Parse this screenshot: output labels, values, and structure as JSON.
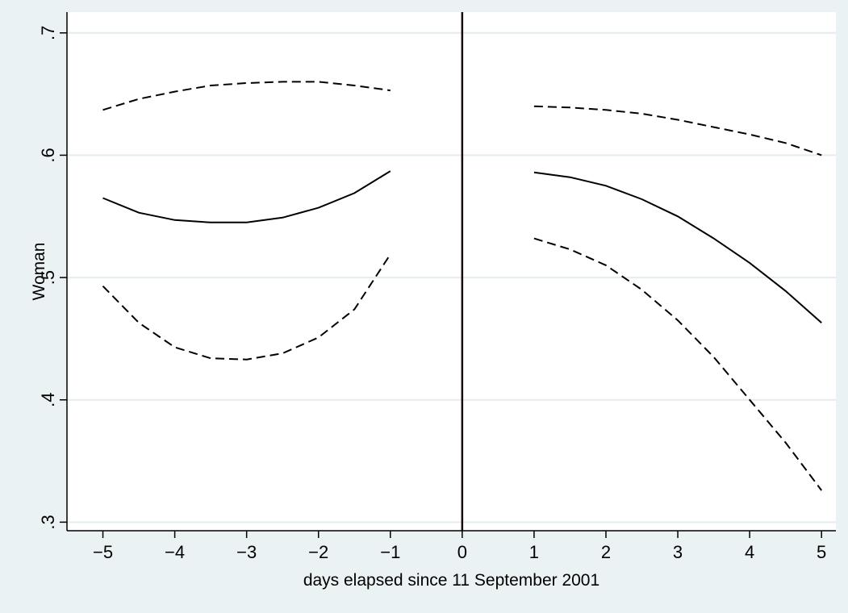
{
  "chart_data": {
    "type": "line",
    "title": "",
    "xlabel": "days elapsed since 11 September 2001",
    "ylabel": "Woman",
    "xlim": [
      -5.5,
      5.2
    ],
    "ylim": [
      0.293,
      0.717
    ],
    "xticks": [
      -5,
      -4,
      -3,
      -2,
      -1,
      0,
      1,
      2,
      3,
      4,
      5
    ],
    "xtick_labels": [
      "−5",
      "−4",
      "−3",
      "−2",
      "−1",
      "0",
      "1",
      "2",
      "3",
      "4",
      "5"
    ],
    "yticks": [
      0.3,
      0.4,
      0.5,
      0.6,
      0.7
    ],
    "ytick_labels": [
      ".3",
      ".4",
      ".5",
      ".6",
      ".7"
    ],
    "grid": true,
    "vertical_line_x": 0,
    "colors": {
      "background": "#eaf2f3",
      "plot_area": "#ffffff",
      "grid": "#e3ecee",
      "line": "#000000",
      "vline": "#1a0a0a"
    },
    "series": [
      {
        "style": "solid",
        "segment": "pre",
        "x": [
          -5,
          -4.5,
          -4,
          -3.5,
          -3,
          -2.5,
          -2,
          -1.5,
          -1
        ],
        "y": [
          0.565,
          0.553,
          0.547,
          0.545,
          0.545,
          0.549,
          0.557,
          0.569,
          0.587
        ]
      },
      {
        "style": "dashed",
        "segment": "pre",
        "x": [
          -5,
          -4.5,
          -4,
          -3.5,
          -3,
          -2.5,
          -2,
          -1.5,
          -1
        ],
        "y": [
          0.637,
          0.646,
          0.652,
          0.657,
          0.659,
          0.66,
          0.66,
          0.657,
          0.653
        ]
      },
      {
        "style": "dashed",
        "segment": "pre",
        "x": [
          -5,
          -4.5,
          -4,
          -3.5,
          -3,
          -2.5,
          -2,
          -1.5,
          -1
        ],
        "y": [
          0.493,
          0.463,
          0.443,
          0.434,
          0.433,
          0.438,
          0.451,
          0.474,
          0.519
        ]
      },
      {
        "style": "solid",
        "segment": "post",
        "x": [
          1,
          1.5,
          2,
          2.5,
          3,
          3.5,
          4,
          4.5,
          5
        ],
        "y": [
          0.586,
          0.582,
          0.575,
          0.564,
          0.55,
          0.532,
          0.512,
          0.489,
          0.463
        ]
      },
      {
        "style": "dashed",
        "segment": "post",
        "x": [
          1,
          1.5,
          2,
          2.5,
          3,
          3.5,
          4,
          4.5,
          5
        ],
        "y": [
          0.64,
          0.639,
          0.637,
          0.634,
          0.629,
          0.623,
          0.617,
          0.61,
          0.6
        ]
      },
      {
        "style": "dashed",
        "segment": "post",
        "x": [
          1,
          1.5,
          2,
          2.5,
          3,
          3.5,
          4,
          4.5,
          5
        ],
        "y": [
          0.532,
          0.523,
          0.51,
          0.49,
          0.465,
          0.435,
          0.4,
          0.365,
          0.326
        ]
      }
    ]
  }
}
